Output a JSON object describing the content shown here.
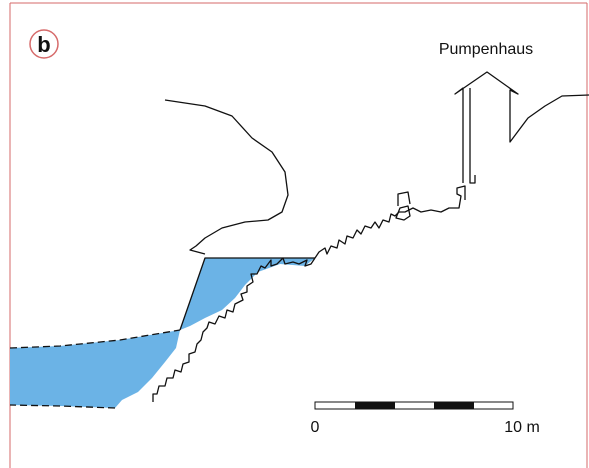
{
  "panel_label": "b",
  "building": {
    "label": "Pumpenhaus"
  },
  "scale": {
    "start_label": "0",
    "end_label": "10 m"
  }
}
